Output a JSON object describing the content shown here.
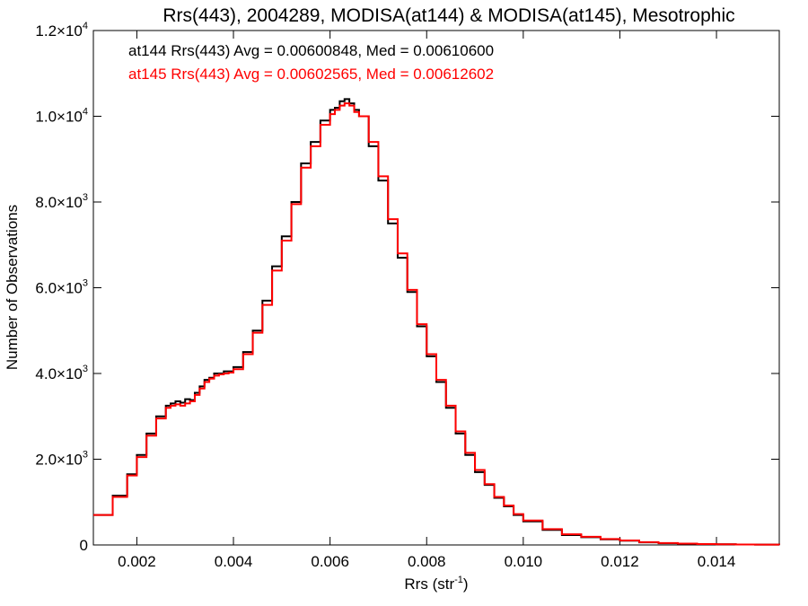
{
  "chart_data": {
    "type": "line",
    "title": "Rrs(443), 2004289, MODISA(at144) & MODISA(at145), Mesotrophic",
    "xlabel": {
      "text": "Rrs (str",
      "sup": "-1",
      "suffix": ")"
    },
    "ylabel": "Number of Observations",
    "xlim": [
      0.0011,
      0.0153
    ],
    "ylim": [
      0,
      12000
    ],
    "x_ticks": [
      {
        "value": 0.002,
        "label": "0.002"
      },
      {
        "value": 0.004,
        "label": "0.004"
      },
      {
        "value": 0.006,
        "label": "0.006"
      },
      {
        "value": 0.008,
        "label": "0.008"
      },
      {
        "value": 0.01,
        "label": "0.010"
      },
      {
        "value": 0.012,
        "label": "0.012"
      },
      {
        "value": 0.014,
        "label": "0.014"
      }
    ],
    "y_ticks": [
      {
        "value": 0,
        "base": "0",
        "exp": ""
      },
      {
        "value": 2000,
        "base": "2.0×10",
        "exp": "3"
      },
      {
        "value": 4000,
        "base": "4.0×10",
        "exp": "3"
      },
      {
        "value": 6000,
        "base": "6.0×10",
        "exp": "3"
      },
      {
        "value": 8000,
        "base": "8.0×10",
        "exp": "3"
      },
      {
        "value": 10000,
        "base": "1.0×10",
        "exp": "4"
      },
      {
        "value": 12000,
        "base": "1.2×10",
        "exp": "4"
      }
    ],
    "grid": false,
    "legend_position": "top-left",
    "series": [
      {
        "name": "at144",
        "legend_text": "at144 Rrs(443) Avg = 0.00600848, Med = 0.00610600",
        "color": "#000000",
        "x": [
          0.0011,
          0.0015,
          0.0018,
          0.002,
          0.0022,
          0.0024,
          0.0026,
          0.0027,
          0.0028,
          0.0029,
          0.003,
          0.0031,
          0.0032,
          0.0033,
          0.0034,
          0.0035,
          0.0036,
          0.0037,
          0.0038,
          0.0039,
          0.004,
          0.0042,
          0.0044,
          0.0046,
          0.0048,
          0.005,
          0.0052,
          0.0054,
          0.0056,
          0.0058,
          0.006,
          0.0061,
          0.0062,
          0.0063,
          0.0064,
          0.0065,
          0.0066,
          0.0068,
          0.007,
          0.0072,
          0.0074,
          0.0076,
          0.0078,
          0.008,
          0.0082,
          0.0084,
          0.0086,
          0.0088,
          0.009,
          0.0092,
          0.0094,
          0.0096,
          0.0098,
          0.01,
          0.0104,
          0.0108,
          0.0112,
          0.0116,
          0.012,
          0.0124,
          0.0128,
          0.0132,
          0.0136,
          0.014,
          0.0144,
          0.0148,
          0.0153
        ],
        "y": [
          700,
          1150,
          1650,
          2100,
          2600,
          3000,
          3250,
          3300,
          3350,
          3320,
          3400,
          3380,
          3550,
          3700,
          3850,
          3900,
          4000,
          4000,
          4050,
          4050,
          4150,
          4500,
          5000,
          5700,
          6500,
          7200,
          8000,
          8900,
          9400,
          9900,
          10150,
          10200,
          10350,
          10400,
          10300,
          10150,
          10000,
          9300,
          8500,
          7500,
          6700,
          5900,
          5100,
          4400,
          3800,
          3200,
          2600,
          2100,
          1700,
          1400,
          1100,
          900,
          700,
          550,
          350,
          230,
          180,
          130,
          100,
          60,
          40,
          30,
          20,
          15,
          10,
          8,
          5
        ]
      },
      {
        "name": "at145",
        "legend_text": "at145 Rrs(443) Avg = 0.00602565, Med = 0.00612602",
        "color": "#ff0000",
        "x": [
          0.0011,
          0.0015,
          0.0018,
          0.002,
          0.0022,
          0.0024,
          0.0026,
          0.0027,
          0.0028,
          0.0029,
          0.003,
          0.0031,
          0.0032,
          0.0033,
          0.0034,
          0.0035,
          0.0036,
          0.0037,
          0.0038,
          0.0039,
          0.004,
          0.0042,
          0.0044,
          0.0046,
          0.0048,
          0.005,
          0.0052,
          0.0054,
          0.0056,
          0.0058,
          0.006,
          0.0061,
          0.0062,
          0.0063,
          0.0064,
          0.0065,
          0.0066,
          0.0068,
          0.007,
          0.0072,
          0.0074,
          0.0076,
          0.0078,
          0.008,
          0.0082,
          0.0084,
          0.0086,
          0.0088,
          0.009,
          0.0092,
          0.0094,
          0.0096,
          0.0098,
          0.01,
          0.0104,
          0.0108,
          0.0112,
          0.0116,
          0.012,
          0.0124,
          0.0128,
          0.0132,
          0.0136,
          0.014,
          0.0144,
          0.0148,
          0.0153
        ],
        "y": [
          700,
          1120,
          1620,
          2050,
          2550,
          2950,
          3200,
          3250,
          3280,
          3250,
          3300,
          3350,
          3500,
          3650,
          3800,
          3880,
          3950,
          3980,
          4000,
          4020,
          4100,
          4450,
          4950,
          5600,
          6400,
          7100,
          7950,
          8800,
          9300,
          9800,
          10050,
          10150,
          10250,
          10300,
          10250,
          10100,
          10000,
          9400,
          8600,
          7600,
          6800,
          5950,
          5150,
          4450,
          3850,
          3250,
          2650,
          2150,
          1750,
          1420,
          1120,
          920,
          720,
          570,
          370,
          250,
          190,
          140,
          105,
          65,
          45,
          32,
          22,
          16,
          11,
          8,
          5
        ]
      }
    ]
  }
}
